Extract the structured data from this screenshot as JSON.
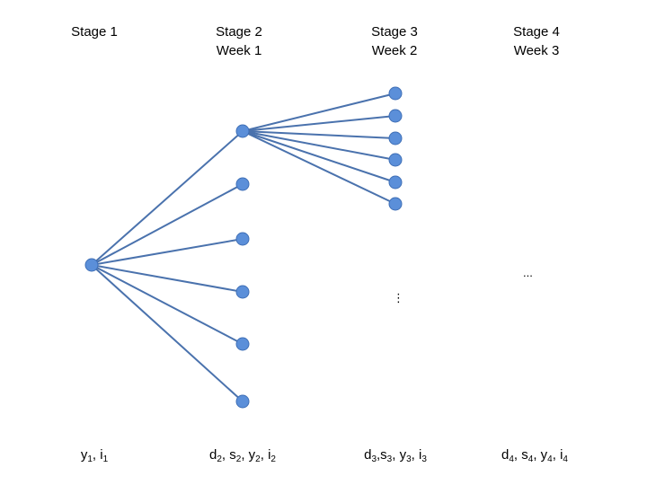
{
  "stages": [
    {
      "title": "Stage 1",
      "subtitle": "",
      "vars": [
        [
          "y",
          "1"
        ],
        [
          "i",
          "1"
        ]
      ]
    },
    {
      "title": "Stage 2",
      "subtitle": "Week 1",
      "vars": [
        [
          "d",
          "2"
        ],
        [
          "s",
          "2"
        ],
        [
          "y",
          "2"
        ],
        [
          "i",
          "2"
        ]
      ]
    },
    {
      "title": "Stage 3",
      "subtitle": "Week 2",
      "vars": [
        [
          "d",
          "3"
        ],
        [
          "s",
          "3"
        ],
        [
          "y",
          "3"
        ],
        [
          "i",
          "3"
        ]
      ]
    },
    {
      "title": "Stage 4",
      "subtitle": "Week 3",
      "vars": [
        [
          "d",
          "4"
        ],
        [
          "s",
          "4"
        ],
        [
          "y",
          "4"
        ],
        [
          "i",
          "4"
        ]
      ]
    }
  ],
  "stage3_ellipsis": "⋮",
  "stage4_ellipsis": "...",
  "tree": {
    "root_children": 6,
    "expanded_child_index": 0,
    "expanded_child_children": 6
  },
  "colors": {
    "node_fill": "#5b8fd9",
    "node_stroke": "#3f6fb6",
    "edge": "#4a72ad"
  }
}
